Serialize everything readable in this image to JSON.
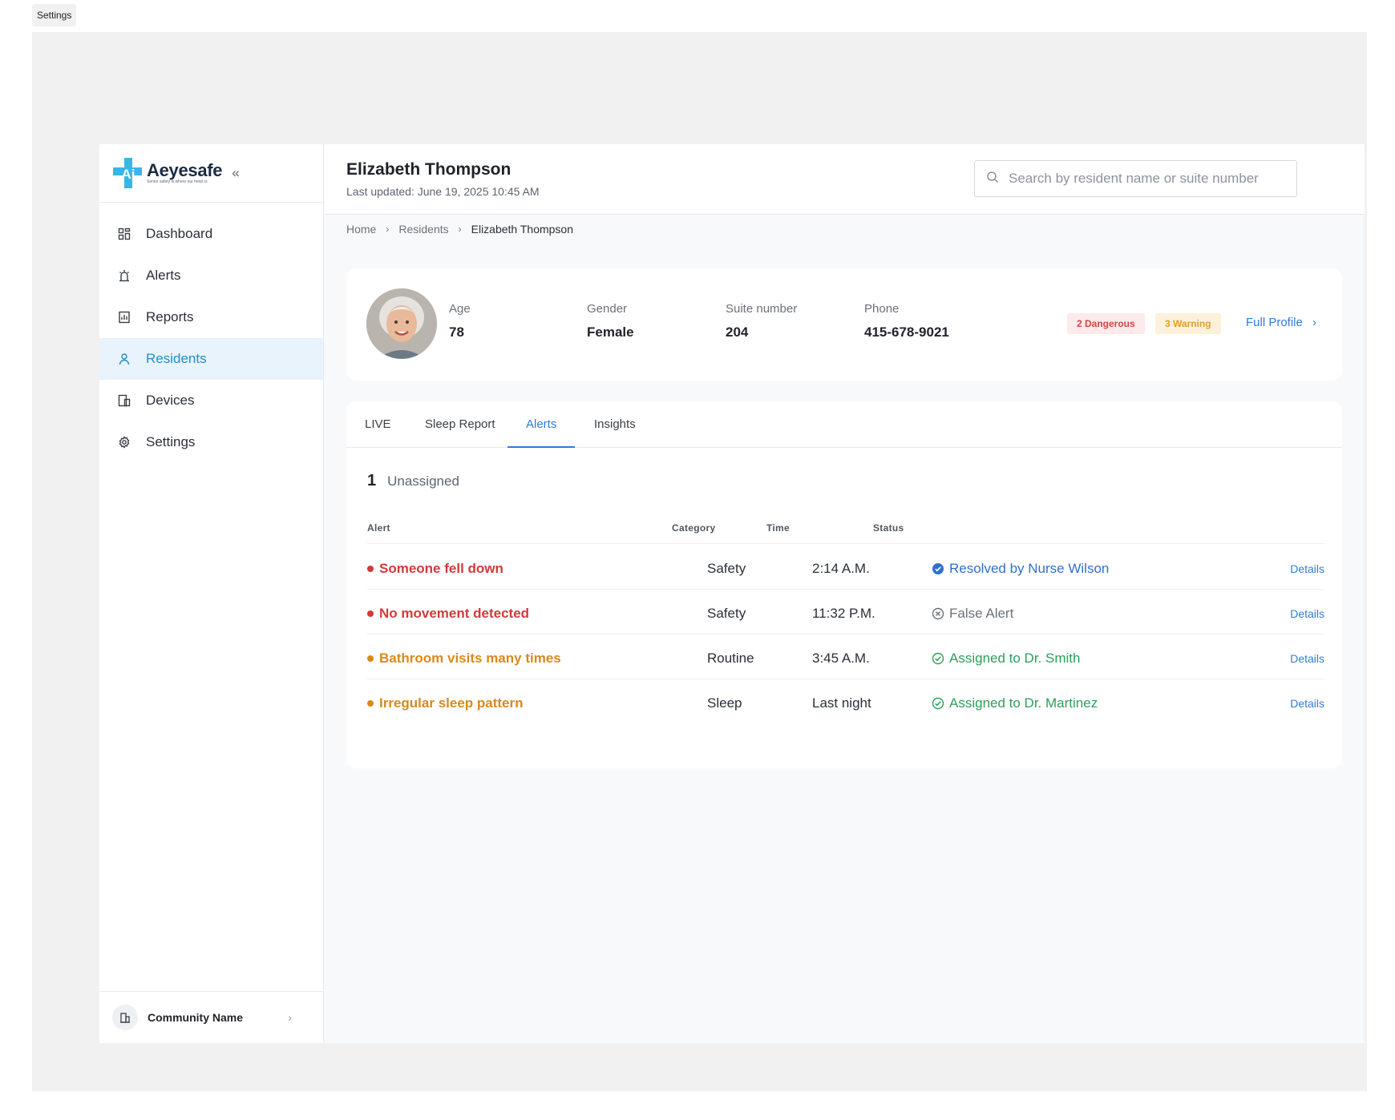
{
  "frame": {
    "label": "Settings"
  },
  "brand": {
    "name": "Aeyesafe",
    "tagline": "Senior safety is where our heart is",
    "mark_text": "Ai",
    "color": "#39b6e8"
  },
  "sidebar": {
    "items": [
      {
        "label": "Dashboard",
        "icon": "dashboard-icon"
      },
      {
        "label": "Alerts",
        "icon": "alarm-icon"
      },
      {
        "label": "Reports",
        "icon": "report-icon"
      },
      {
        "label": "Residents",
        "icon": "person-icon",
        "active": true
      },
      {
        "label": "Devices",
        "icon": "devices-icon"
      },
      {
        "label": "Settings",
        "icon": "gear-icon"
      }
    ],
    "community": {
      "label": "Community Name",
      "icon": "building-icon"
    }
  },
  "header": {
    "title": "Elizabeth Thompson",
    "updated": "Last updated: June 19, 2025 10:45 AM",
    "search_placeholder": "Search by resident name or suite number"
  },
  "breadcrumb": [
    "Home",
    "Residents",
    "Elizabeth Thompson"
  ],
  "profile": {
    "fields": [
      {
        "label": "Age",
        "value": "78"
      },
      {
        "label": "Gender",
        "value": "Female"
      },
      {
        "label": "Suite number",
        "value": "204"
      },
      {
        "label": "Phone",
        "value": "415-678-9021"
      }
    ],
    "badges": {
      "dangerous": "2 Dangerous",
      "warning": "3 Warning"
    },
    "full_profile_label": "Full Profile"
  },
  "tabs": [
    "LIVE",
    "Sleep Report",
    "Alerts",
    "Insights"
  ],
  "active_tab": "Alerts",
  "alerts": {
    "count": "1",
    "count_label": "Unassigned",
    "columns": [
      "Alert",
      "Category",
      "Time",
      "Status"
    ],
    "rows": [
      {
        "alert": "Someone fell down",
        "severity": "danger",
        "category": "Safety",
        "time": "2:14 A.M.",
        "status": "Resolved by Nurse Wilson",
        "status_type": "resolved",
        "details": "Details"
      },
      {
        "alert": "No movement detected",
        "severity": "danger",
        "category": "Safety",
        "time": "11:32 P.M.",
        "status": "False Alert",
        "status_type": "false",
        "details": "Details"
      },
      {
        "alert": "Bathroom visits many times",
        "severity": "warning",
        "category": "Routine",
        "time": "3:45 A.M.",
        "status": "Assigned to Dr. Smith",
        "status_type": "assigned",
        "details": "Details"
      },
      {
        "alert": "Irregular sleep pattern",
        "severity": "warning",
        "category": "Sleep",
        "time": "Last night",
        "status": "Assigned to Dr. Martinez",
        "status_type": "assigned",
        "details": "Details"
      }
    ]
  },
  "colors": {
    "danger": "#d23a3a",
    "warning": "#d9891c",
    "resolved": "#2f6fd0",
    "assigned": "#2c9f5a",
    "false": "#6b717b",
    "accent": "#2f7cd6"
  }
}
